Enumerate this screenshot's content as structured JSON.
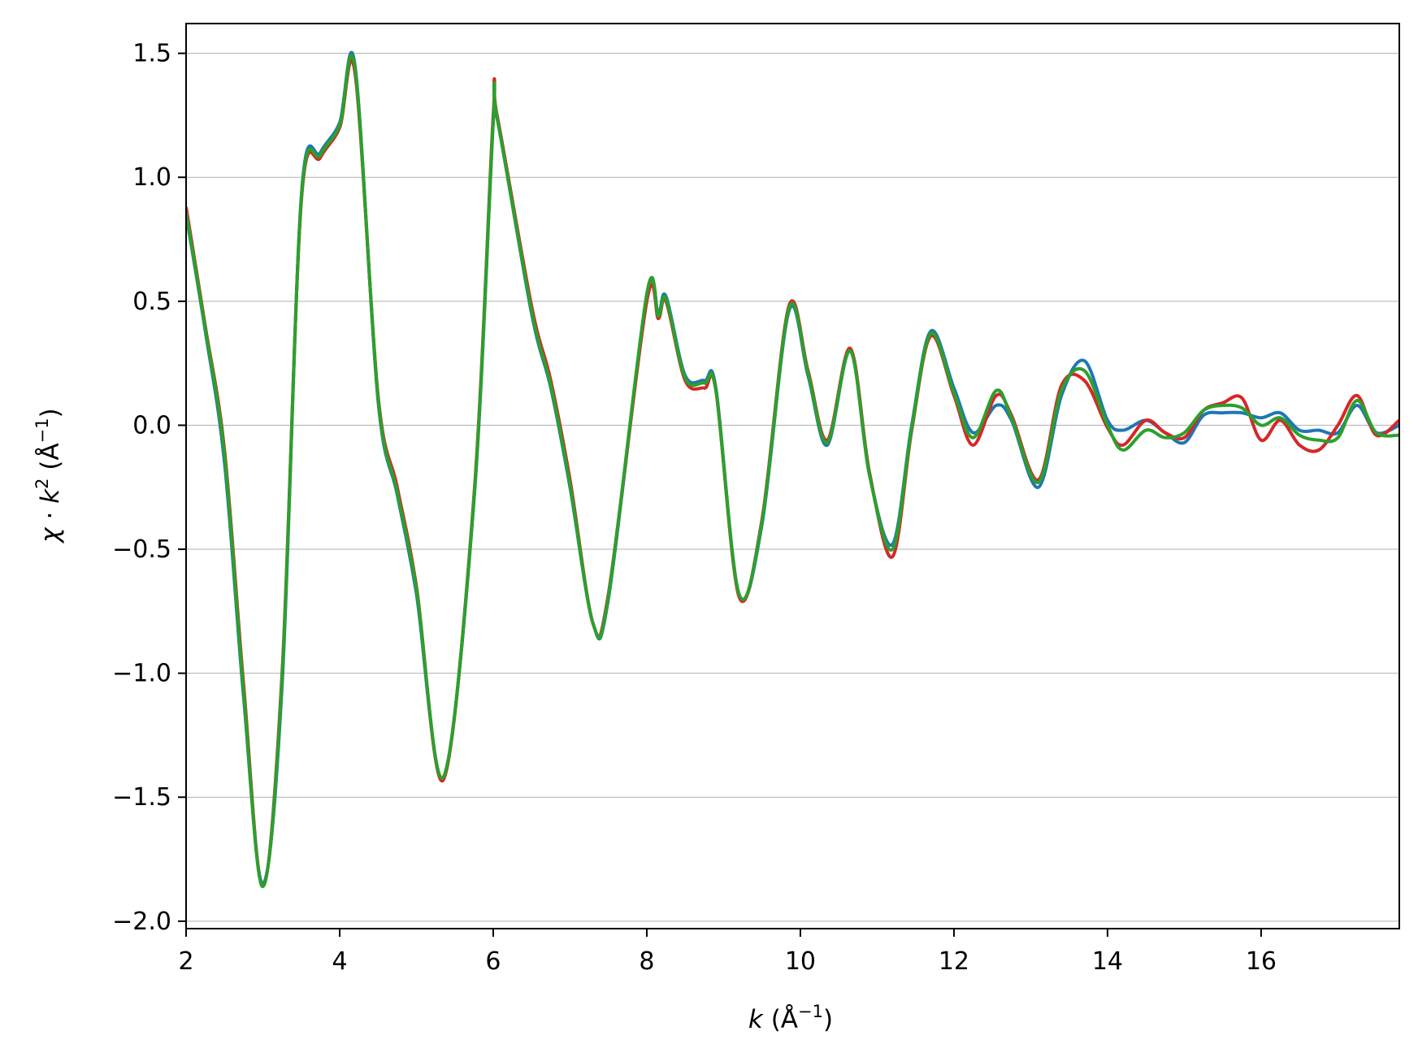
{
  "chart_data": {
    "type": "line",
    "title": "",
    "xlabel": {
      "var": "k",
      "unit_open": " (Å",
      "unit_exp": "−1",
      "unit_close": ")"
    },
    "ylabel": {
      "var1": "χ",
      "dot": " · ",
      "var2": "k",
      "var2_exp": "2",
      "unit_open": " (Å",
      "unit_exp": "−1",
      "unit_close": ")"
    },
    "xlim": [
      2.0,
      17.8
    ],
    "ylim": [
      -2.03,
      1.62
    ],
    "xticks": [
      2,
      4,
      6,
      8,
      10,
      12,
      14,
      16
    ],
    "xtick_labels": [
      "2",
      "4",
      "6",
      "8",
      "10",
      "12",
      "14",
      "16"
    ],
    "yticks": [
      -2.0,
      -1.5,
      -1.0,
      -0.5,
      0.0,
      0.5,
      1.0,
      1.5
    ],
    "ytick_labels": [
      "−2.0",
      "−1.5",
      "−1.0",
      "−0.5",
      "0.0",
      "0.5",
      "1.0",
      "1.5"
    ],
    "grid": "horizontal",
    "legend": "none",
    "x": [
      2.0,
      2.25,
      2.5,
      2.75,
      3.0,
      3.25,
      3.5,
      3.75,
      4.0,
      4.2,
      4.5,
      4.75,
      5.0,
      5.35,
      5.75,
      6.0,
      6.05,
      6.5,
      6.75,
      7.0,
      7.3,
      7.5,
      8.0,
      8.15,
      8.25,
      8.5,
      8.75,
      8.9,
      9.2,
      9.5,
      9.85,
      10.1,
      10.35,
      10.65,
      10.9,
      11.2,
      11.45,
      11.7,
      12.0,
      12.25,
      12.55,
      12.75,
      13.1,
      13.4,
      13.7,
      14.0,
      14.2,
      14.5,
      14.75,
      15.0,
      15.25,
      15.5,
      15.75,
      16.0,
      16.25,
      16.5,
      16.75,
      17.0,
      17.25,
      17.5,
      17.8
    ],
    "series": [
      {
        "color": "#1f77b4",
        "y": [
          0.85,
          0.38,
          -0.15,
          -1.1,
          -1.85,
          -1.05,
          0.92,
          1.1,
          1.22,
          1.45,
          0.1,
          -0.28,
          -0.68,
          -1.42,
          -0.3,
          1.22,
          1.24,
          0.45,
          0.15,
          -0.25,
          -0.8,
          -0.7,
          0.52,
          0.45,
          0.52,
          0.2,
          0.18,
          0.15,
          -0.68,
          -0.4,
          0.46,
          0.2,
          -0.08,
          0.3,
          -0.2,
          -0.48,
          0.0,
          0.38,
          0.15,
          -0.03,
          0.08,
          0.02,
          -0.25,
          0.12,
          0.26,
          0.02,
          -0.02,
          0.02,
          -0.03,
          -0.07,
          0.04,
          0.05,
          0.05,
          0.03,
          0.05,
          -0.02,
          -0.02,
          -0.03,
          0.08,
          -0.03,
          0.0
        ]
      },
      {
        "color": "#d62728",
        "y": [
          0.88,
          0.4,
          -0.1,
          -1.05,
          -1.86,
          -1.0,
          0.9,
          1.08,
          1.2,
          1.42,
          0.12,
          -0.25,
          -0.65,
          -1.43,
          -0.28,
          1.25,
          1.25,
          0.48,
          0.18,
          -0.22,
          -0.8,
          -0.68,
          0.5,
          0.43,
          0.5,
          0.18,
          0.15,
          0.14,
          -0.69,
          -0.38,
          0.48,
          0.22,
          -0.06,
          0.31,
          -0.19,
          -0.53,
          -0.02,
          0.36,
          0.12,
          -0.08,
          0.12,
          0.04,
          -0.22,
          0.16,
          0.18,
          -0.01,
          -0.08,
          0.02,
          -0.03,
          -0.05,
          0.06,
          0.09,
          0.11,
          -0.06,
          0.02,
          -0.08,
          -0.1,
          0.0,
          0.12,
          -0.04,
          0.02
        ]
      },
      {
        "color": "#2ca02c",
        "y": [
          0.86,
          0.39,
          -0.12,
          -1.08,
          -1.86,
          -1.02,
          0.91,
          1.09,
          1.21,
          1.44,
          0.11,
          -0.27,
          -0.66,
          -1.42,
          -0.29,
          1.23,
          1.24,
          0.46,
          0.16,
          -0.24,
          -0.8,
          -0.69,
          0.53,
          0.44,
          0.51,
          0.19,
          0.17,
          0.14,
          -0.68,
          -0.39,
          0.47,
          0.21,
          -0.07,
          0.3,
          -0.2,
          -0.5,
          -0.01,
          0.37,
          0.13,
          -0.05,
          0.14,
          0.03,
          -0.23,
          0.14,
          0.22,
          0.0,
          -0.1,
          -0.02,
          -0.05,
          -0.03,
          0.06,
          0.08,
          0.07,
          0.0,
          0.03,
          -0.04,
          -0.06,
          -0.05,
          0.1,
          -0.03,
          -0.04
        ]
      }
    ]
  }
}
